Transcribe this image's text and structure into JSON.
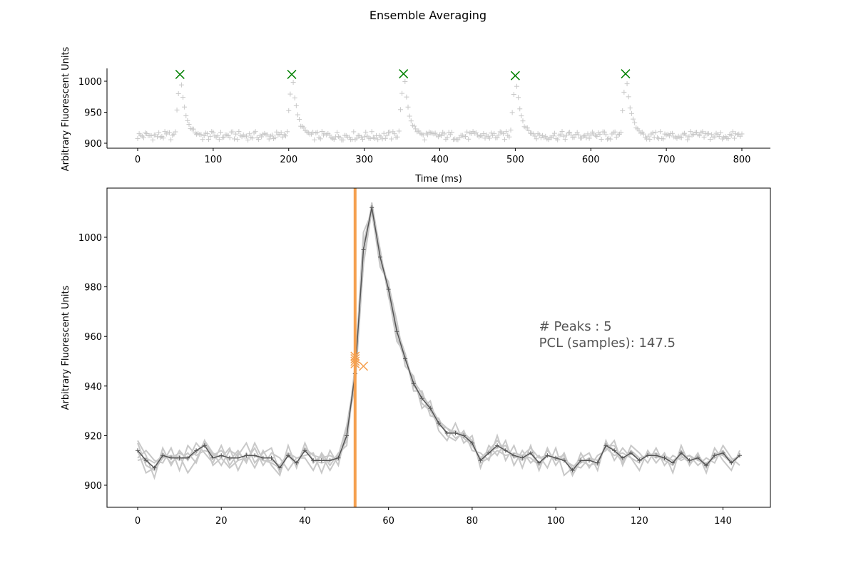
{
  "figure": {
    "title": "Ensemble Averaging"
  },
  "chart_data": [
    {
      "type": "scatter",
      "name": "signal-overview",
      "xlabel": "Time (ms)",
      "ylabel": "Arbitrary Fluorescent Units",
      "xlim": [
        -40,
        840
      ],
      "ylim": [
        892,
        1020
      ],
      "xticks": [
        0,
        100,
        200,
        300,
        400,
        500,
        600,
        700,
        800
      ],
      "yticks": [
        900,
        950,
        1000
      ],
      "grid": false,
      "spines": "left-bottom",
      "colors": {
        "samples": "#c8c8c8",
        "peaks": "#008000"
      },
      "baseline": 912,
      "peak_x": [
        56,
        204,
        352,
        500,
        646
      ],
      "peak_y": [
        1011,
        1011,
        1012,
        1009,
        1012
      ],
      "peak_shape": [
        [
          -10,
          912
        ],
        [
          -8,
          912
        ],
        [
          -6,
          920
        ],
        [
          -4,
          952
        ],
        [
          -2,
          982
        ],
        [
          0,
          1011
        ],
        [
          2,
          996
        ],
        [
          4,
          975
        ],
        [
          6,
          958
        ],
        [
          8,
          945
        ],
        [
          10,
          937
        ],
        [
          12,
          930
        ],
        [
          14,
          926
        ],
        [
          16,
          922
        ],
        [
          18,
          920
        ],
        [
          20,
          918
        ],
        [
          22,
          916
        ],
        [
          24,
          914
        ],
        [
          26,
          912
        ]
      ],
      "sample_step": 2,
      "sample_range": [
        0,
        800
      ]
    },
    {
      "type": "line",
      "name": "ensemble-average",
      "xlabel": "",
      "ylabel": "Arbitrary Fluorescent Units",
      "xlim": [
        -7,
        151
      ],
      "ylim": [
        892,
        1020
      ],
      "xticks": [
        0,
        20,
        40,
        60,
        80,
        100,
        120,
        140
      ],
      "yticks": [
        900,
        920,
        940,
        960,
        980,
        1000
      ],
      "grid": false,
      "colors": {
        "traces": "#c8c8c8",
        "mean": "#555555",
        "vline": "#f5a04f",
        "markers": "#f5a04f"
      },
      "vline_x": 52,
      "mean_x": [
        0,
        2,
        4,
        6,
        8,
        10,
        12,
        14,
        16,
        18,
        20,
        22,
        24,
        26,
        28,
        30,
        32,
        34,
        36,
        38,
        40,
        42,
        44,
        46,
        48,
        50,
        52,
        54,
        56,
        58,
        60,
        62,
        64,
        66,
        68,
        70,
        72,
        74,
        76,
        78,
        80,
        82,
        84,
        86,
        88,
        90,
        92,
        94,
        96,
        98,
        100,
        102,
        104,
        106,
        108,
        110,
        112,
        114,
        116,
        118,
        120,
        122,
        124,
        126,
        128,
        130,
        132,
        134,
        136,
        138,
        140,
        142,
        144
      ],
      "mean_y": [
        914,
        910,
        907,
        912,
        911,
        911,
        911,
        914,
        916,
        911,
        912,
        911,
        911,
        912,
        912,
        911,
        911,
        907,
        912,
        909,
        914,
        910,
        910,
        910,
        911,
        920,
        945,
        995,
        1012,
        992,
        979,
        962,
        951,
        941,
        935,
        931,
        925,
        921,
        921,
        920,
        917,
        910,
        913,
        916,
        914,
        912,
        911,
        913,
        909,
        912,
        911,
        910,
        906,
        910,
        910,
        909,
        916,
        914,
        911,
        913,
        910,
        912,
        912,
        911,
        909,
        913,
        910,
        911,
        908,
        912,
        913,
        909,
        912
      ],
      "traces": [
        [
          914,
          905,
          907,
          913,
          909,
          912,
          905,
          910,
          918,
          908,
          911,
          915,
          906,
          913,
          907,
          914,
          908,
          904,
          916,
          907,
          917,
          909,
          912,
          906,
          912,
          918,
          946,
          1002,
          1010,
          990,
          981,
          966,
          948,
          944,
          931,
          934,
          922,
          918,
          925,
          917,
          920,
          907,
          916,
          912,
          918,
          908,
          914,
          909,
          912,
          907,
          915,
          904,
          907,
          911,
          913,
          906,
          918,
          910,
          915,
          911,
          906,
          914,
          909,
          913,
          905,
          916,
          908,
          913,
          905,
          915,
          910,
          906,
          914
        ],
        [
          918,
          912,
          903,
          915,
          908,
          914,
          910,
          917,
          913,
          909,
          916,
          908,
          913,
          910,
          915,
          908,
          913,
          911,
          906,
          911,
          912,
          913,
          905,
          914,
          908,
          923,
          940,
          990,
          1014,
          994,
          977,
          958,
          953,
          938,
          938,
          928,
          927,
          920,
          918,
          922,
          914,
          913,
          910,
          920,
          910,
          916,
          907,
          916,
          906,
          915,
          908,
          913,
          904,
          913,
          907,
          912,
          914,
          918,
          908,
          916,
          913,
          909,
          915,
          908,
          912,
          910,
          912,
          908,
          911,
          909,
          916,
          911,
          908
        ],
        [
          911,
          914,
          910,
          909,
          915,
          906,
          916,
          912,
          914,
          913,
          908,
          914,
          912,
          917,
          909,
          913,
          915,
          905,
          913,
          911,
          911,
          906,
          913,
          908,
          913,
          916,
          947,
          998,
          1011,
          988,
          982,
          960,
          950,
          943,
          933,
          930,
          924,
          923,
          919,
          921,
          918,
          909,
          911,
          914,
          912,
          913,
          912,
          915,
          911,
          912,
          911,
          910,
          908,
          907,
          911,
          910,
          915,
          912,
          913,
          911,
          909,
          913,
          911,
          912,
          910,
          911,
          912,
          910,
          909,
          911,
          913,
          910,
          912
        ],
        [
          910,
          911,
          909,
          912,
          911,
          913,
          911,
          913,
          917,
          912,
          914,
          910,
          914,
          909,
          917,
          910,
          910,
          908,
          913,
          908,
          915,
          912,
          911,
          912,
          910,
          919,
          948,
          996,
          1013,
          995,
          976,
          963,
          953,
          940,
          936,
          932,
          926,
          921,
          922,
          919,
          916,
          911,
          914,
          915,
          916,
          911,
          912,
          911,
          908,
          914,
          910,
          911,
          907,
          909,
          911,
          908,
          917,
          914,
          909,
          914,
          911,
          912,
          913,
          910,
          908,
          914,
          909,
          912,
          907,
          913,
          912,
          909,
          912
        ],
        [
          917,
          908,
          906,
          911,
          912,
          910,
          913,
          909,
          918,
          913,
          911,
          907,
          910,
          911,
          912,
          910,
          909,
          907,
          912,
          908,
          915,
          910,
          909,
          910,
          912,
          924,
          944,
          989,
          1011,
          993,
          980,
          963,
          951,
          942,
          937,
          931,
          926,
          923,
          921,
          921,
          917,
          910,
          914,
          918,
          914,
          912,
          910,
          913,
          908,
          912,
          911,
          912,
          904,
          910,
          908,
          909,
          916,
          916,
          910,
          913,
          911,
          912,
          912,
          911,
          910,
          912,
          909,
          912,
          908,
          912,
          914,
          909,
          912
        ]
      ],
      "onset_markers": [
        [
          52,
          950
        ],
        [
          52,
          952
        ],
        [
          52,
          951
        ],
        [
          52,
          949
        ],
        [
          54,
          948
        ]
      ],
      "annotation": {
        "peaks_line": "# Peaks : 5",
        "pcl_line": "PCL (samples): 147.5",
        "x": 96,
        "y": 963
      }
    }
  ]
}
